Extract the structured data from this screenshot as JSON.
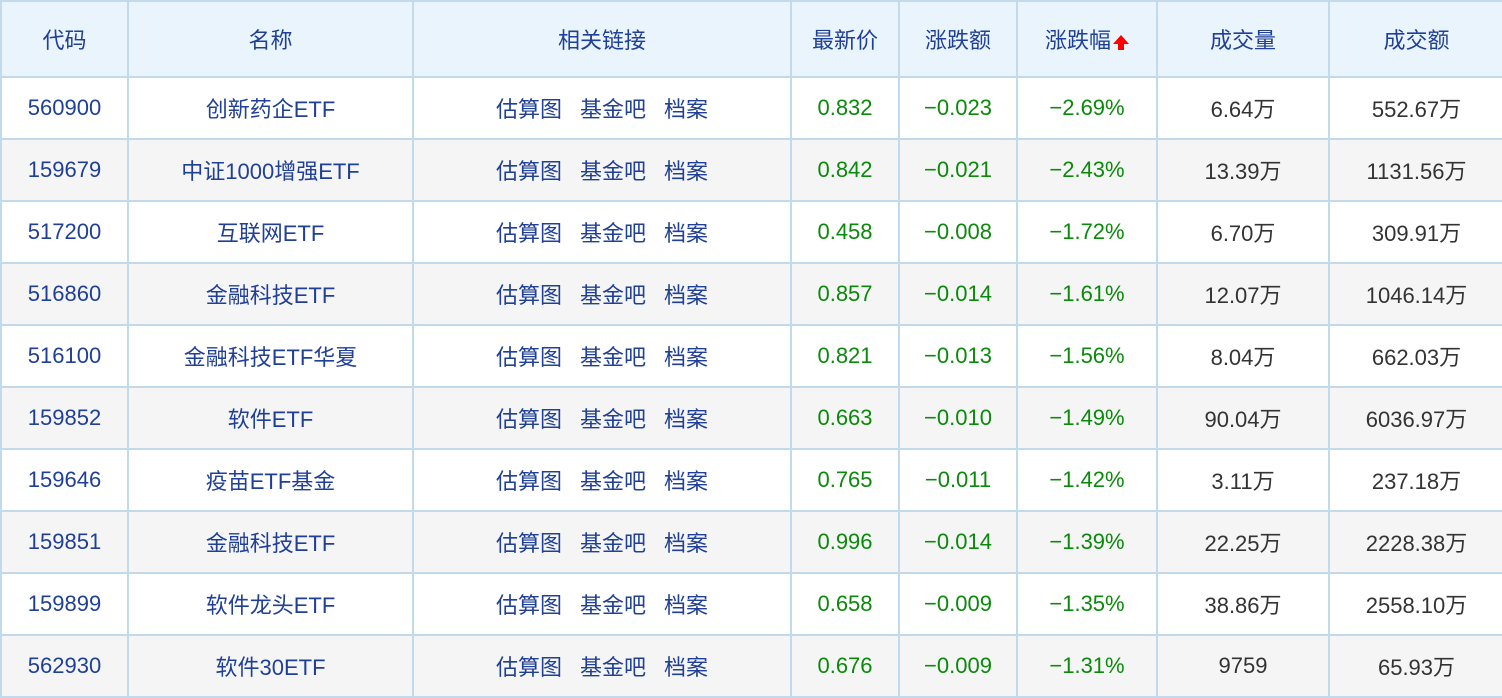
{
  "headers": [
    "代码",
    "名称",
    "相关链接",
    "最新价",
    "涨跌额",
    "涨跌幅",
    "成交量",
    "成交额"
  ],
  "sort": {
    "column": "涨跌幅",
    "icon": "red-up-arrow-icon",
    "color": "#ff0000"
  },
  "link_labels": [
    "估算图",
    "基金吧",
    "档案"
  ],
  "colors": {
    "header_bg": "#eaf4fd",
    "header_text": "#1f3f98",
    "down": "#0a8a0a",
    "border": "#c3d9ec"
  },
  "rows": [
    {
      "code": "560900",
      "name": "创新药企ETF",
      "price": "0.832",
      "change": "−0.023",
      "pct": "−2.69%",
      "volume": "6.64万",
      "amount": "552.67万"
    },
    {
      "code": "159679",
      "name": "中证1000增强ETF",
      "price": "0.842",
      "change": "−0.021",
      "pct": "−2.43%",
      "volume": "13.39万",
      "amount": "1131.56万"
    },
    {
      "code": "517200",
      "name": "互联网ETF",
      "price": "0.458",
      "change": "−0.008",
      "pct": "−1.72%",
      "volume": "6.70万",
      "amount": "309.91万"
    },
    {
      "code": "516860",
      "name": "金融科技ETF",
      "price": "0.857",
      "change": "−0.014",
      "pct": "−1.61%",
      "volume": "12.07万",
      "amount": "1046.14万"
    },
    {
      "code": "516100",
      "name": "金融科技ETF华夏",
      "price": "0.821",
      "change": "−0.013",
      "pct": "−1.56%",
      "volume": "8.04万",
      "amount": "662.03万"
    },
    {
      "code": "159852",
      "name": "软件ETF",
      "price": "0.663",
      "change": "−0.010",
      "pct": "−1.49%",
      "volume": "90.04万",
      "amount": "6036.97万"
    },
    {
      "code": "159646",
      "name": "疫苗ETF基金",
      "price": "0.765",
      "change": "−0.011",
      "pct": "−1.42%",
      "volume": "3.11万",
      "amount": "237.18万"
    },
    {
      "code": "159851",
      "name": "金融科技ETF",
      "price": "0.996",
      "change": "−0.014",
      "pct": "−1.39%",
      "volume": "22.25万",
      "amount": "2228.38万"
    },
    {
      "code": "159899",
      "name": "软件龙头ETF",
      "price": "0.658",
      "change": "−0.009",
      "pct": "−1.35%",
      "volume": "38.86万",
      "amount": "2558.10万"
    },
    {
      "code": "562930",
      "name": "软件30ETF",
      "price": "0.676",
      "change": "−0.009",
      "pct": "−1.31%",
      "volume": "9759",
      "amount": "65.93万"
    }
  ]
}
